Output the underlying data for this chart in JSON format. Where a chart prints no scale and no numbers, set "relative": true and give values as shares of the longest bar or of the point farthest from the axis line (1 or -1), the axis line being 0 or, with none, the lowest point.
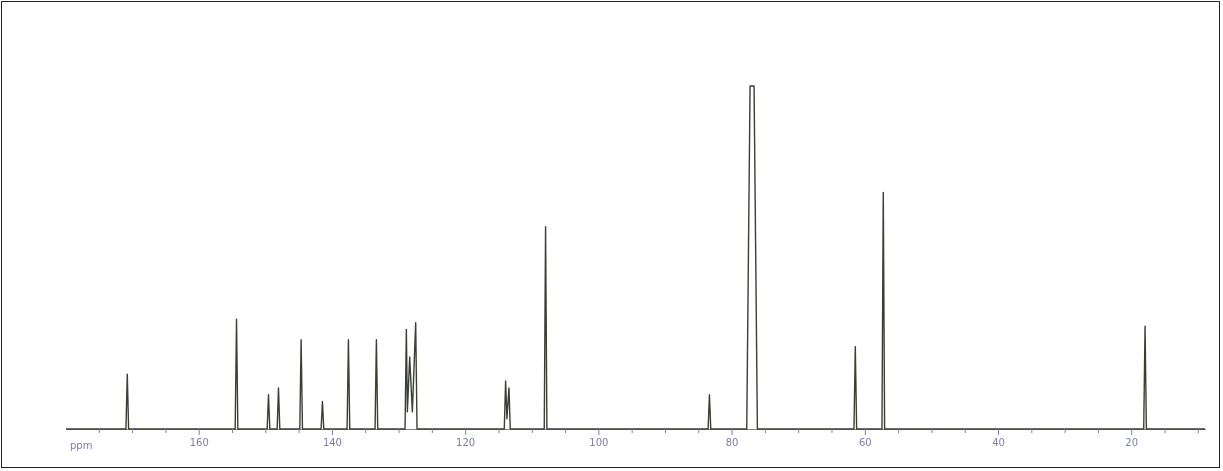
{
  "chart_data": {
    "type": "line",
    "xlabel": "ppm",
    "relative": true,
    "marker": "none",
    "line_style": "solid",
    "grid": false,
    "legend": false,
    "xlim": [
      180,
      9
    ],
    "xticks": [
      {
        "value": 175,
        "label": null
      },
      {
        "value": 170,
        "label": null
      },
      {
        "value": 165,
        "label": null
      },
      160,
      {
        "value": 155,
        "label": null
      },
      {
        "value": 150,
        "label": null
      },
      {
        "value": 145,
        "label": null
      },
      140,
      {
        "value": 135,
        "label": null
      },
      {
        "value": 130,
        "label": null
      },
      {
        "value": 125,
        "label": null
      },
      120,
      {
        "value": 115,
        "label": null
      },
      {
        "value": 110,
        "label": null
      },
      {
        "value": 105,
        "label": null
      },
      100,
      {
        "value": 95,
        "label": null
      },
      {
        "value": 90,
        "label": null
      },
      {
        "value": 85,
        "label": null
      },
      80,
      {
        "value": 75,
        "label": null
      },
      {
        "value": 70,
        "label": null
      },
      {
        "value": 65,
        "label": null
      },
      60,
      {
        "value": 55,
        "label": null
      },
      {
        "value": 50,
        "label": null
      },
      {
        "value": 45,
        "label": null
      },
      40,
      {
        "value": 35,
        "label": null
      },
      {
        "value": 30,
        "label": null
      },
      {
        "value": 25,
        "label": null
      },
      20,
      {
        "value": 15,
        "label": null
      },
      {
        "value": 10,
        "label": null
      }
    ],
    "series": [
      {
        "color": "#3a3f33",
        "x": [
          180,
          171.0,
          170.8,
          170.6,
          154.6,
          154.4,
          154.2,
          149.8,
          149.6,
          149.4,
          148.3,
          148.1,
          147.9,
          144.9,
          144.7,
          144.5,
          141.7,
          141.5,
          141.3,
          137.8,
          137.6,
          137.4,
          133.6,
          133.4,
          133.2,
          129.1,
          128.9,
          128.75,
          128.4,
          128.0,
          127.5,
          127.3,
          114.2,
          114.0,
          113.8,
          113.5,
          113.3,
          108.2,
          108.0,
          107.8,
          83.6,
          83.4,
          83.2,
          77.8,
          77.3,
          77.0,
          76.7,
          76.2,
          61.7,
          61.5,
          61.3,
          57.5,
          57.3,
          57.1,
          18.2,
          18.0,
          17.8,
          9
        ],
        "values": [
          0,
          0,
          0.16,
          0,
          0,
          0.32,
          0,
          0,
          0.1,
          0,
          0,
          0.12,
          0,
          0,
          0.26,
          0,
          0,
          0.08,
          0,
          0,
          0.26,
          0,
          0,
          0.26,
          0,
          0,
          0.29,
          0.05,
          0.21,
          0.05,
          0.31,
          0,
          0,
          0.14,
          0.03,
          0.12,
          0,
          0,
          0.59,
          0,
          0,
          0.1,
          0,
          0,
          1,
          1,
          1,
          0,
          0,
          0.24,
          0,
          0,
          0.69,
          0,
          0,
          0.3,
          0,
          0
        ]
      }
    ]
  }
}
